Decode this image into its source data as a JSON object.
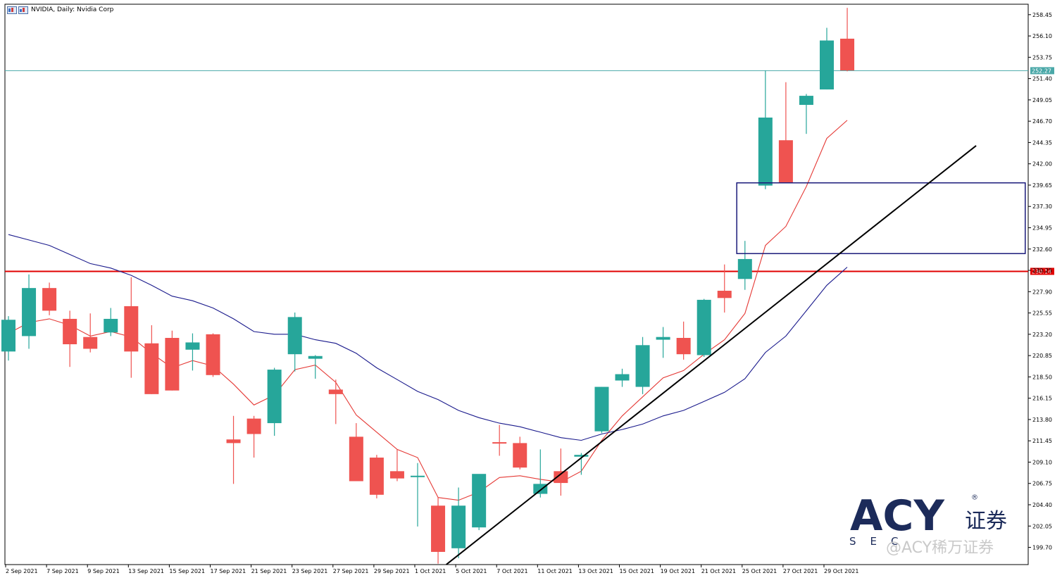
{
  "header": {
    "title": "NVIDIA, Daily:  Nvidia Corp"
  },
  "logo": {
    "brand": "ACY",
    "cn": "证券",
    "sub": "SEC",
    "watermark": "@ACY稀万证券",
    "registered": "®"
  },
  "colors": {
    "up": "#26a69a",
    "down": "#ef5350",
    "ma_fast": "#e53935",
    "ma_slow": "#1a1a8c",
    "support": "#e00000",
    "price_line": "#4aa8a8",
    "box": "#1a1a7a",
    "trend": "#000000"
  },
  "chart_data": {
    "type": "candlestick",
    "title": "NVIDIA, Daily:  Nvidia Corp",
    "ylim": [
      197.8,
      259.6
    ],
    "yticks": [
      "258.45",
      "256.10",
      "253.75",
      "251.40",
      "249.05",
      "246.70",
      "244.35",
      "242.00",
      "239.65",
      "237.30",
      "234.95",
      "232.60",
      "230.25",
      "227.90",
      "225.55",
      "223.20",
      "220.85",
      "218.50",
      "216.15",
      "213.80",
      "211.45",
      "209.10",
      "206.75",
      "204.40",
      "202.05",
      "199.70"
    ],
    "xlabels": [
      {
        "index": 0,
        "label": "2 Sep 2021"
      },
      {
        "index": 2,
        "label": "7 Sep 2021"
      },
      {
        "index": 4,
        "label": "9 Sep 2021"
      },
      {
        "index": 6,
        "label": "13 Sep 2021"
      },
      {
        "index": 8,
        "label": "15 Sep 2021"
      },
      {
        "index": 10,
        "label": "17 Sep 2021"
      },
      {
        "index": 12,
        "label": "21 Sep 2021"
      },
      {
        "index": 14,
        "label": "23 Sep 2021"
      },
      {
        "index": 16,
        "label": "27 Sep 2021"
      },
      {
        "index": 18,
        "label": "29 Sep 2021"
      },
      {
        "index": 20,
        "label": "1 Oct 2021"
      },
      {
        "index": 22,
        "label": "5 Oct 2021"
      },
      {
        "index": 24,
        "label": "7 Oct 2021"
      },
      {
        "index": 26,
        "label": "11 Oct 2021"
      },
      {
        "index": 28,
        "label": "13 Oct 2021"
      },
      {
        "index": 30,
        "label": "15 Oct 2021"
      },
      {
        "index": 32,
        "label": "19 Oct 2021"
      },
      {
        "index": 34,
        "label": "21 Oct 2021"
      },
      {
        "index": 36,
        "label": "25 Oct 2021"
      },
      {
        "index": 38,
        "label": "27 Oct 2021"
      },
      {
        "index": 40,
        "label": "29 Oct 2021"
      }
    ],
    "candles": [
      {
        "o": 221.3,
        "h": 225.2,
        "l": 220.3,
        "c": 224.8
      },
      {
        "o": 223.0,
        "h": 229.8,
        "l": 221.6,
        "c": 228.3
      },
      {
        "o": 228.3,
        "h": 228.9,
        "l": 225.3,
        "c": 225.8
      },
      {
        "o": 224.9,
        "h": 225.8,
        "l": 219.6,
        "c": 222.1
      },
      {
        "o": 222.9,
        "h": 225.5,
        "l": 221.2,
        "c": 221.6
      },
      {
        "o": 223.4,
        "h": 226.1,
        "l": 223.0,
        "c": 224.9
      },
      {
        "o": 226.3,
        "h": 229.5,
        "l": 218.4,
        "c": 221.3
      },
      {
        "o": 222.2,
        "h": 224.2,
        "l": 216.6,
        "c": 216.6
      },
      {
        "o": 222.8,
        "h": 223.6,
        "l": 217.0,
        "c": 217.0
      },
      {
        "o": 221.5,
        "h": 223.3,
        "l": 219.2,
        "c": 222.3
      },
      {
        "o": 223.2,
        "h": 223.3,
        "l": 218.5,
        "c": 218.7
      },
      {
        "o": 211.6,
        "h": 214.2,
        "l": 206.7,
        "c": 211.2
      },
      {
        "o": 213.9,
        "h": 214.2,
        "l": 209.6,
        "c": 212.2
      },
      {
        "o": 213.4,
        "h": 219.5,
        "l": 212.0,
        "c": 219.3
      },
      {
        "o": 221.0,
        "h": 225.6,
        "l": 219.1,
        "c": 225.1
      },
      {
        "o": 220.5,
        "h": 220.9,
        "l": 218.3,
        "c": 220.8
      },
      {
        "o": 217.1,
        "h": 218.2,
        "l": 213.3,
        "c": 216.6
      },
      {
        "o": 211.9,
        "h": 213.4,
        "l": 207.0,
        "c": 207.0
      },
      {
        "o": 209.6,
        "h": 209.9,
        "l": 205.1,
        "c": 205.5
      },
      {
        "o": 208.1,
        "h": 210.5,
        "l": 207.0,
        "c": 207.3
      },
      {
        "o": 207.6,
        "h": 209.0,
        "l": 202.0,
        "c": 207.6
      },
      {
        "o": 204.3,
        "h": 205.2,
        "l": 197.9,
        "c": 199.2
      },
      {
        "o": 199.6,
        "h": 206.3,
        "l": 198.5,
        "c": 204.3
      },
      {
        "o": 201.9,
        "h": 207.4,
        "l": 201.6,
        "c": 207.8
      },
      {
        "o": 211.3,
        "h": 213.2,
        "l": 209.8,
        "c": 211.2
      },
      {
        "o": 211.2,
        "h": 211.9,
        "l": 208.3,
        "c": 208.5
      },
      {
        "o": 205.6,
        "h": 210.5,
        "l": 205.2,
        "c": 206.7
      },
      {
        "o": 208.1,
        "h": 210.6,
        "l": 205.4,
        "c": 206.8
      },
      {
        "o": 209.7,
        "h": 210.1,
        "l": 207.7,
        "c": 209.9
      },
      {
        "o": 212.5,
        "h": 217.4,
        "l": 212.3,
        "c": 217.4
      },
      {
        "o": 218.1,
        "h": 219.4,
        "l": 217.4,
        "c": 218.8
      },
      {
        "o": 217.4,
        "h": 222.9,
        "l": 216.6,
        "c": 222.0
      },
      {
        "o": 222.6,
        "h": 224.0,
        "l": 220.6,
        "c": 222.9
      },
      {
        "o": 222.8,
        "h": 224.6,
        "l": 220.4,
        "c": 221.0
      },
      {
        "o": 220.9,
        "h": 227.1,
        "l": 220.7,
        "c": 227.0
      },
      {
        "o": 228.0,
        "h": 230.9,
        "l": 225.6,
        "c": 227.2
      },
      {
        "o": 229.3,
        "h": 233.5,
        "l": 228.1,
        "c": 231.5
      },
      {
        "o": 239.6,
        "h": 252.3,
        "l": 239.2,
        "c": 247.1
      },
      {
        "o": 244.6,
        "h": 251.0,
        "l": 239.9,
        "c": 239.9
      },
      {
        "o": 248.5,
        "h": 249.7,
        "l": 245.3,
        "c": 249.5
      },
      {
        "o": 250.2,
        "h": 257.0,
        "l": 250.2,
        "c": 255.6
      },
      {
        "o": 255.8,
        "h": 259.2,
        "l": 252.2,
        "c": 252.3
      }
    ],
    "series": [
      {
        "name": "",
        "color": "#e53935",
        "values": [
          223.3,
          224.5,
          224.9,
          224.2,
          223.0,
          223.5,
          222.9,
          221.1,
          219.5,
          220.3,
          219.7,
          217.7,
          215.4,
          216.5,
          219.3,
          219.8,
          217.9,
          214.3,
          212.4,
          210.5,
          209.6,
          205.2,
          204.9,
          205.8,
          207.4,
          207.6,
          207.2,
          206.9,
          208.1,
          211.5,
          214.2,
          216.3,
          218.4,
          219.2,
          221.0,
          222.6,
          225.5,
          233.0,
          235.1,
          239.5,
          244.8,
          246.8
        ]
      },
      {
        "name": "",
        "color": "#1a1a8c",
        "values": [
          234.2,
          233.6,
          233.0,
          232.0,
          231.0,
          230.5,
          229.7,
          228.6,
          227.4,
          226.9,
          226.1,
          224.9,
          223.5,
          223.2,
          223.2,
          222.6,
          222.2,
          221.1,
          219.5,
          218.2,
          216.9,
          216.0,
          214.8,
          214.0,
          213.4,
          213.0,
          212.4,
          211.8,
          211.5,
          212.2,
          212.7,
          213.3,
          214.2,
          214.8,
          215.8,
          216.8,
          218.3,
          221.2,
          223.0,
          225.8,
          228.6,
          230.6
        ]
      }
    ],
    "levels": [
      {
        "value": 252.27,
        "label": "252.27",
        "color": "#4aa8a8"
      },
      {
        "value": 230.14,
        "label": "230.14",
        "color": "#e00000"
      }
    ],
    "annotations": [
      {
        "type": "rectangle",
        "x_index": [
          35.6,
          49.7
        ],
        "y": [
          232.1,
          239.9
        ]
      },
      {
        "type": "trendline",
        "x_index": [
          21.4,
          47.3
        ],
        "y": [
          197.8,
          244.0
        ]
      }
    ],
    "xlabel": "",
    "ylabel": ""
  }
}
